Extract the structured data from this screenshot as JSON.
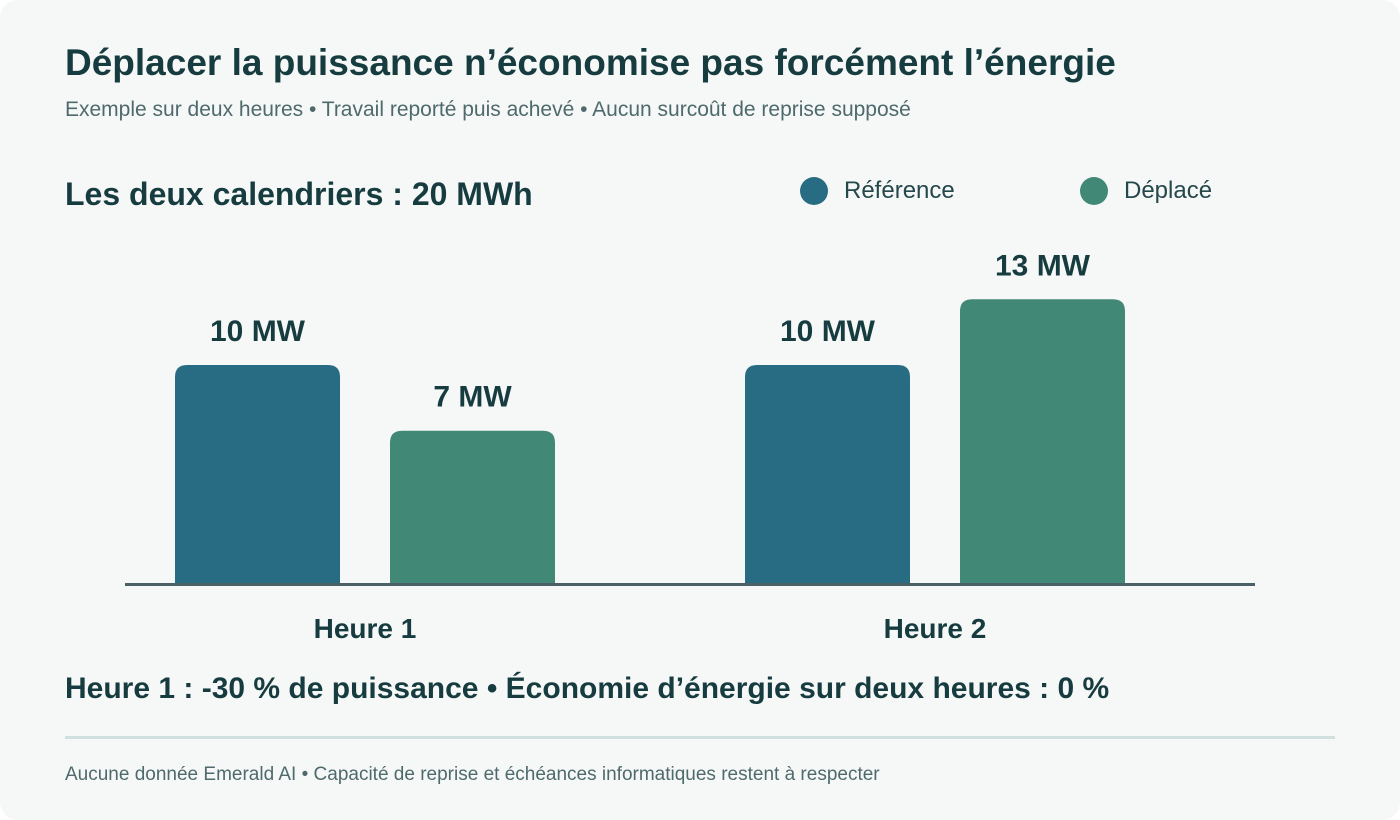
{
  "header": {
    "title": "Déplacer la puissance n’économise pas forcément l’énergie",
    "subtitle": "Exemple sur deux heures • Travail reporté puis achevé • Aucun surcoût de reprise supposé"
  },
  "total_label": "Les deux calendriers : 20 MWh",
  "summary": "Heure 1 : -30 % de puissance • Économie d’énergie sur deux heures : 0 %",
  "footnote": "Aucune donnée Emerald AI • Capacité de reprise et échéances informatiques restent à respecter",
  "colors": {
    "reference": "#286c84",
    "shifted": "#428876",
    "axis": "#4a5f66",
    "text": "#173c40"
  },
  "chart_data": {
    "type": "bar",
    "title": "Déplacer la puissance n’économise pas forcément l’énergie",
    "subtitle": "Exemple sur deux heures • Travail reporté puis achevé • Aucun surcoût de reprise supposé",
    "categories": [
      "Heure 1",
      "Heure 2"
    ],
    "series": [
      {
        "name": "Référence",
        "values": [
          10,
          10
        ],
        "labels": [
          "10 MW",
          "10 MW"
        ],
        "color": "#286c84"
      },
      {
        "name": "Déplacé",
        "values": [
          7,
          13
        ],
        "labels": [
          "7 MW",
          "13 MW"
        ],
        "color": "#428876"
      }
    ],
    "unit": "MW",
    "ylim": [
      0,
      20
    ],
    "grid": false,
    "legend_position": "top-right",
    "xlabel": "",
    "ylabel": ""
  }
}
